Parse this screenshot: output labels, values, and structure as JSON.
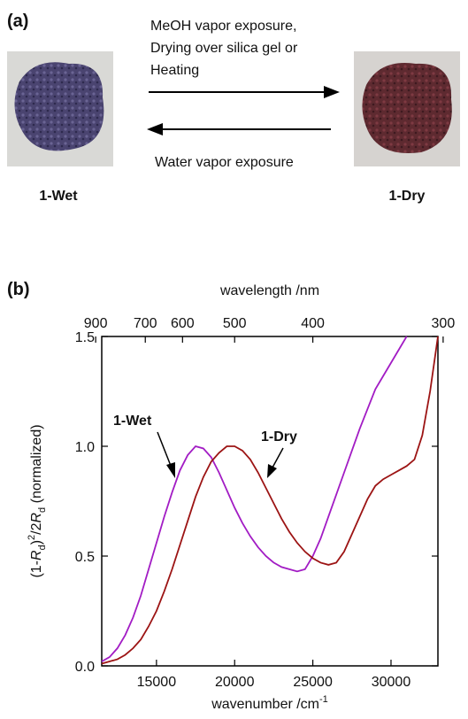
{
  "panel_a": {
    "label": "(a)",
    "forward_text": [
      "MeOH vapor exposure,",
      "Drying over silica gel or",
      "Heating"
    ],
    "reverse_text": "Water vapor exposure",
    "left_caption": "1-Wet",
    "right_caption": "1-Dry"
  },
  "chart_data": {
    "type": "line",
    "panel_label": "(b)",
    "xlabel": [
      "wavenumber /cm",
      "-1"
    ],
    "x2label": "wavelength /nm",
    "ylabel": [
      "(1-",
      "R",
      "d",
      ")",
      "2",
      "/2",
      "R",
      "d",
      " (normalized)"
    ],
    "x": [
      11500,
      12000,
      12500,
      13000,
      13500,
      14000,
      14500,
      15000,
      15500,
      16000,
      16500,
      17000,
      17500,
      18000,
      18500,
      19000,
      19500,
      20000,
      20500,
      21000,
      21500,
      22000,
      22500,
      23000,
      23500,
      24000,
      24500,
      25000,
      25500,
      26000,
      26500,
      27000,
      27500,
      28000,
      28500,
      29000,
      29500,
      30000,
      30500,
      31000,
      31500,
      32000,
      32500,
      33000
    ],
    "series": [
      {
        "name": "1-Wet",
        "color": "#a21cc4",
        "values": [
          0.02,
          0.04,
          0.08,
          0.14,
          0.22,
          0.32,
          0.44,
          0.56,
          0.68,
          0.79,
          0.89,
          0.96,
          1.0,
          0.99,
          0.95,
          0.88,
          0.8,
          0.72,
          0.65,
          0.59,
          0.54,
          0.5,
          0.47,
          0.45,
          0.44,
          0.43,
          0.44,
          0.5,
          0.58,
          0.68,
          0.78,
          0.88,
          0.98,
          1.08,
          1.17,
          1.26,
          1.32,
          1.38,
          1.44,
          1.5,
          null,
          null,
          null,
          null
        ]
      },
      {
        "name": "1-Dry",
        "color": "#9c1414",
        "values": [
          0.01,
          0.02,
          0.03,
          0.05,
          0.08,
          0.12,
          0.18,
          0.25,
          0.34,
          0.44,
          0.55,
          0.66,
          0.77,
          0.86,
          0.93,
          0.97,
          1.0,
          1.0,
          0.98,
          0.94,
          0.88,
          0.81,
          0.74,
          0.67,
          0.61,
          0.56,
          0.52,
          0.49,
          0.47,
          0.46,
          0.47,
          0.52,
          0.6,
          0.68,
          0.76,
          0.82,
          0.85,
          0.87,
          0.89,
          0.91,
          0.94,
          1.05,
          1.25,
          1.5
        ]
      }
    ],
    "xlim": [
      11500,
      33000
    ],
    "xticks": [
      15000,
      20000,
      25000,
      30000
    ],
    "x2scale": "reciprocal",
    "x2ticks": [
      900,
      700,
      600,
      500,
      400,
      300
    ],
    "ylim": [
      0,
      1.5
    ],
    "yticks": [
      {
        "value": 0,
        "label": "0.0"
      },
      0.5,
      {
        "value": 1,
        "label": "1.0"
      },
      1.5
    ]
  }
}
